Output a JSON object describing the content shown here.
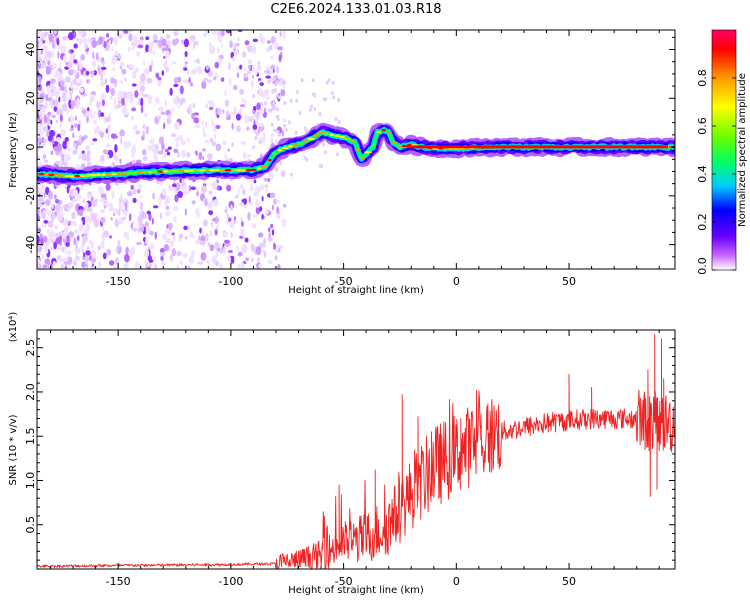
{
  "title": "C2E6.2024.133.01.03.R18",
  "chart_data": [
    {
      "type": "heatmap",
      "xlabel": "Height of straight line (km)",
      "ylabel": "Frequency (Hz)",
      "xlim": [
        -186,
        97
      ],
      "ylim": [
        -50,
        48
      ],
      "x_ticks": [
        -150,
        -100,
        -50,
        0,
        50
      ],
      "y_ticks": [
        -40,
        -20,
        0,
        20,
        40
      ],
      "colorbar": {
        "label": "Normalized spectral amplitude",
        "range": [
          0,
          1
        ],
        "ticks": [
          0.0,
          0.2,
          0.4,
          0.6,
          0.8
        ],
        "colors": [
          "#ffffff",
          "#cc66ff",
          "#6600ff",
          "#0000ff",
          "#00ccff",
          "#00ff66",
          "#66ff00",
          "#ffff00",
          "#ff9900",
          "#ff0000",
          "#ff0066"
        ]
      },
      "ridge": {
        "x": [
          -186,
          -170,
          -150,
          -130,
          -110,
          -90,
          -85,
          -80,
          -75,
          -70,
          -65,
          -60,
          -55,
          -50,
          -45,
          -42,
          -40,
          -37,
          -35,
          -32,
          -30,
          -28,
          -25,
          -20,
          -15,
          -10,
          0,
          20,
          50,
          97
        ],
        "y": [
          -11,
          -12,
          -11,
          -10,
          -9.5,
          -9.5,
          -8,
          -2,
          0,
          1,
          3,
          6,
          5,
          4,
          2,
          -5,
          -3,
          0,
          6,
          7,
          6,
          2,
          0,
          1,
          0,
          -0.5,
          -0.5,
          0,
          0,
          0
        ]
      }
    },
    {
      "type": "line",
      "xlabel": "Height of straight line (km)",
      "ylabel": "SNR (10 * v/v)",
      "y_multiplier": "(x10⁴)",
      "color": "#ee2222",
      "xlim": [
        -186,
        97
      ],
      "ylim": [
        0,
        2.7
      ],
      "x_ticks": [
        -150,
        -100,
        -50,
        0,
        50
      ],
      "y_ticks": [
        0.5,
        1.0,
        1.5,
        2.0,
        2.5
      ],
      "trend": {
        "x": [
          -186,
          -150,
          -100,
          -80,
          -70,
          -60,
          -50,
          -40,
          -30,
          -20,
          -10,
          0,
          10,
          20,
          30,
          40,
          50,
          60,
          70,
          80,
          90,
          97
        ],
        "y": [
          0.03,
          0.04,
          0.05,
          0.06,
          0.1,
          0.15,
          0.3,
          0.35,
          0.5,
          0.85,
          1.15,
          1.3,
          1.45,
          1.55,
          1.6,
          1.65,
          1.68,
          1.7,
          1.7,
          1.7,
          1.65,
          1.65
        ]
      },
      "spikes": [
        {
          "x": -52,
          "y": 0.95
        },
        {
          "x": -36,
          "y": 1.12
        },
        {
          "x": -24,
          "y": 1.97
        },
        {
          "x": -17,
          "y": 1.72
        },
        {
          "x": -11,
          "y": 1.55
        },
        {
          "x": 2,
          "y": 1.7
        },
        {
          "x": 11,
          "y": 1.7
        },
        {
          "x": 50,
          "y": 2.2
        },
        {
          "x": 60,
          "y": 2.05
        },
        {
          "x": 85,
          "y": 2.25
        },
        {
          "x": 88,
          "y": 2.65
        },
        {
          "x": 91,
          "y": 2.6
        },
        {
          "x": 92,
          "y": 2.15
        }
      ],
      "dips": [
        {
          "x": 86,
          "y": 0.82
        },
        {
          "x": 89,
          "y": 0.9
        }
      ]
    }
  ]
}
